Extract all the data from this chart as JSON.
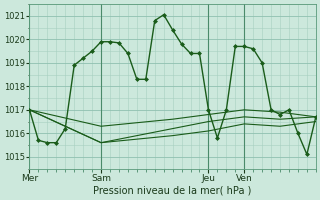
{
  "xlabel": "Pression niveau de la mer( hPa )",
  "bg_color": "#cce8dc",
  "grid_color": "#a8cfc0",
  "line_color": "#1a5c1a",
  "ylim": [
    1014.5,
    1021.5
  ],
  "xlim": [
    0,
    96
  ],
  "yticks": [
    1015,
    1016,
    1017,
    1018,
    1019,
    1020,
    1021
  ],
  "day_positions": [
    0,
    24,
    60,
    72
  ],
  "day_labels": [
    "Mer",
    "Sam",
    "Jeu",
    "Ven"
  ],
  "vline_positions": [
    0,
    24,
    60,
    72
  ],
  "series1_x": [
    0,
    3,
    6,
    9,
    12,
    15,
    18,
    21,
    24,
    27,
    30,
    33,
    36,
    39,
    42,
    45,
    48,
    51,
    54,
    57,
    60,
    63,
    66,
    69,
    72,
    75,
    78,
    81,
    84,
    87,
    90,
    93,
    96
  ],
  "series1_y": [
    1017.0,
    1015.7,
    1015.6,
    1015.6,
    1016.2,
    1018.9,
    1019.2,
    1019.5,
    1019.9,
    1019.9,
    1019.85,
    1019.4,
    1018.3,
    1018.3,
    1020.8,
    1021.05,
    1020.4,
    1019.8,
    1019.4,
    1019.4,
    1017.0,
    1015.8,
    1017.0,
    1019.7,
    1019.7,
    1019.6,
    1019.0,
    1017.0,
    1016.8,
    1017.0,
    1016.0,
    1015.1,
    1016.7
  ],
  "series2_x": [
    0,
    24,
    48,
    60,
    72,
    84,
    96
  ],
  "series2_y": [
    1017.0,
    1016.3,
    1016.6,
    1016.8,
    1017.0,
    1016.9,
    1016.7
  ],
  "series3_x": [
    0,
    24,
    48,
    60,
    72,
    84,
    96
  ],
  "series3_y": [
    1017.0,
    1015.6,
    1016.2,
    1016.5,
    1016.7,
    1016.6,
    1016.7
  ],
  "series4_x": [
    0,
    24,
    48,
    60,
    72,
    84,
    96
  ],
  "series4_y": [
    1017.0,
    1015.6,
    1015.9,
    1016.1,
    1016.4,
    1016.3,
    1016.5
  ]
}
